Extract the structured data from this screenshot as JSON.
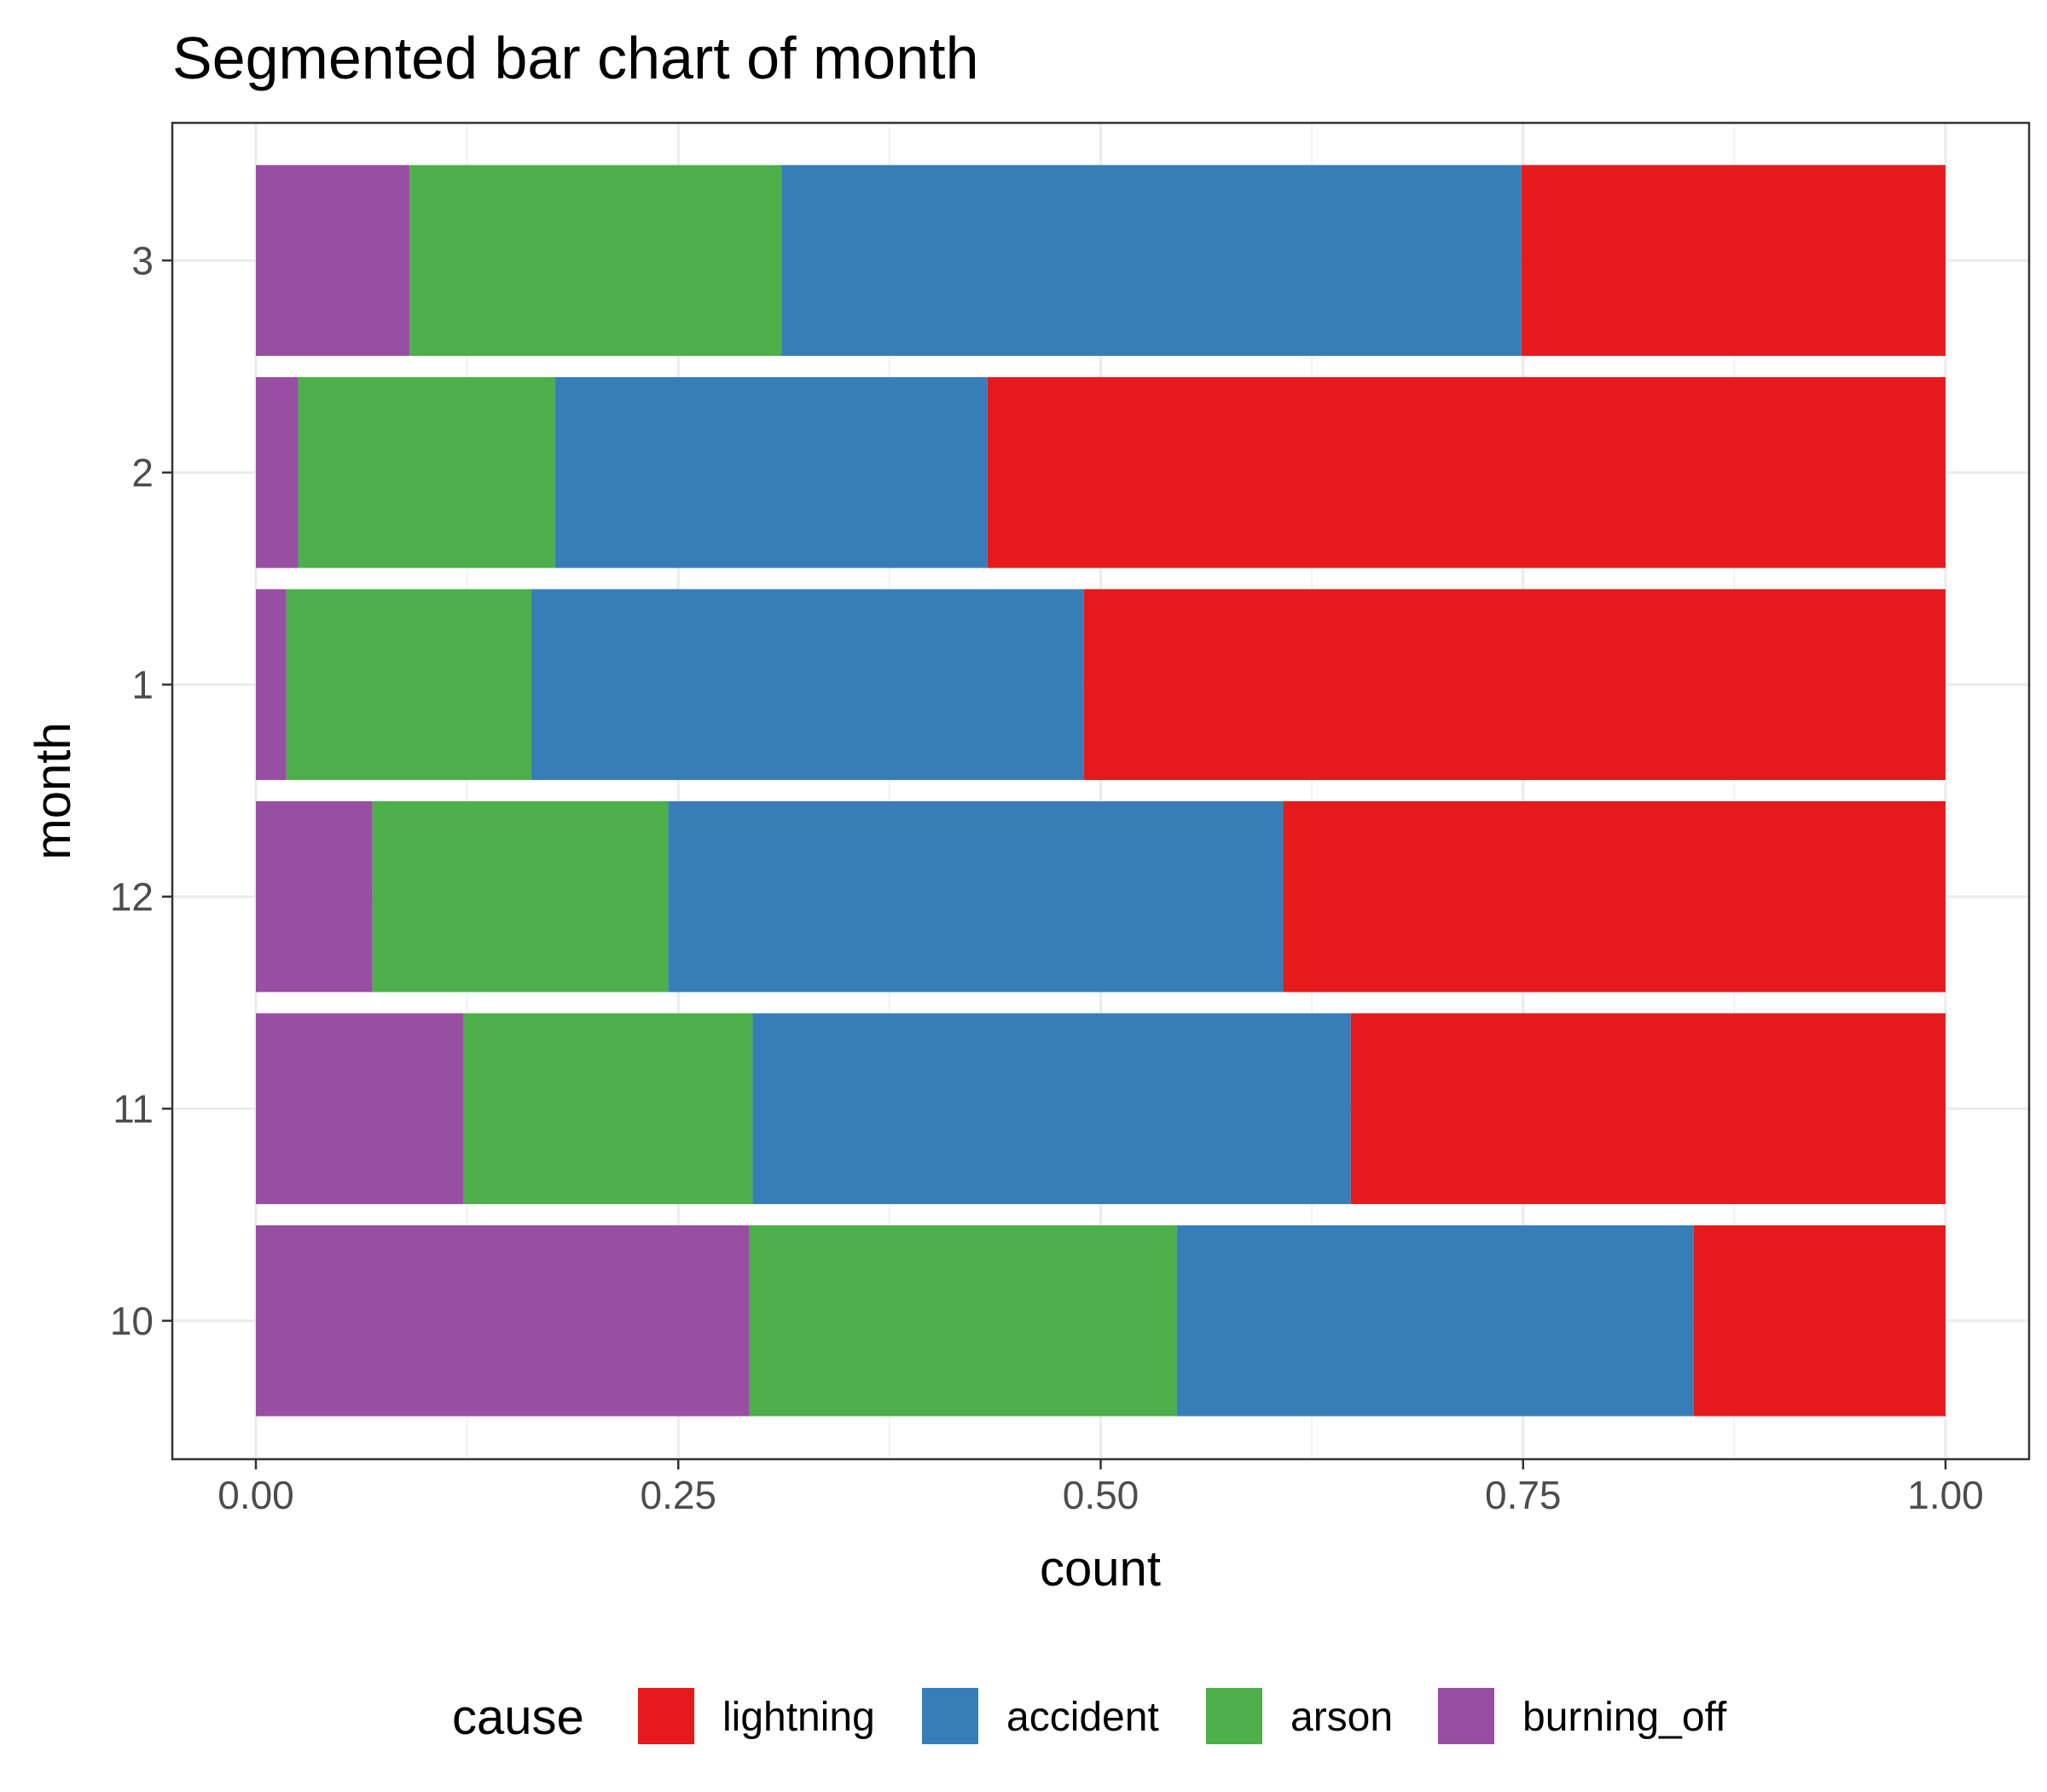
{
  "chart_data": {
    "type": "bar",
    "orientation": "horizontal",
    "stacked": "fill",
    "title": "Segmented bar chart of month",
    "xlabel": "count",
    "ylabel": "month",
    "xlim": [
      0,
      1
    ],
    "x_ticks": [
      "0.00",
      "0.25",
      "0.50",
      "0.75",
      "1.00"
    ],
    "x_tick_values": [
      0,
      0.25,
      0.5,
      0.75,
      1
    ],
    "categories": [
      "10",
      "11",
      "12",
      "1",
      "2",
      "3"
    ],
    "series": [
      {
        "name": "burning_off",
        "color": "#984EA3",
        "values": [
          0.292,
          0.123,
          0.069,
          0.018,
          0.025,
          0.091
        ]
      },
      {
        "name": "arson",
        "color": "#4DAF4A",
        "values": [
          0.253,
          0.171,
          0.175,
          0.145,
          0.152,
          0.22
        ]
      },
      {
        "name": "accident",
        "color": "#377EB8",
        "values": [
          0.306,
          0.354,
          0.364,
          0.327,
          0.256,
          0.438
        ]
      },
      {
        "name": "lightning",
        "color": "#E41A1C",
        "values": [
          0.149,
          0.352,
          0.392,
          0.51,
          0.567,
          0.251
        ]
      }
    ],
    "legend": {
      "title": "cause",
      "position": "bottom",
      "order": [
        "lightning",
        "accident",
        "arson",
        "burning_off"
      ]
    },
    "grid": true
  }
}
